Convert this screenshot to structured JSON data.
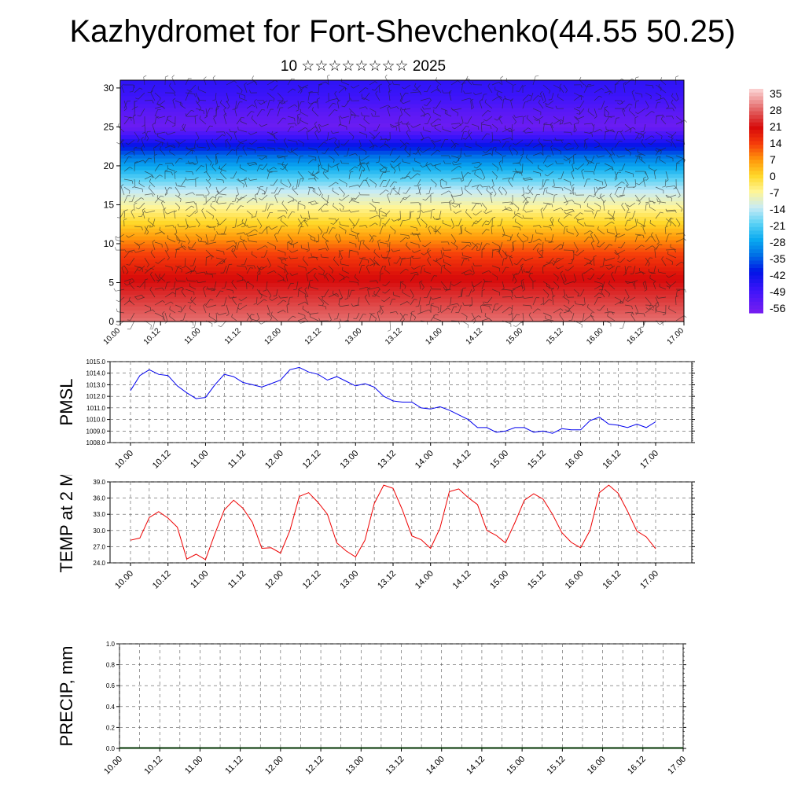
{
  "header": {
    "title": "Kazhydromet for Fort-Shevchenko(44.55 50.25)",
    "subtitle": "10 ☆☆☆☆☆☆☆☆ 2025"
  },
  "colors": {
    "pmsl_line": "#0000ee",
    "temp_line": "#ee0000",
    "precip_baseline": "#003300",
    "grid": "#555555"
  },
  "chart_data": [
    {
      "type": "heatmap",
      "title": "",
      "x_ticks": [
        "10.00",
        "10.12",
        "11.00",
        "11.12",
        "12.00",
        "12.12",
        "13.00",
        "13.12",
        "14.00",
        "14.12",
        "15.00",
        "15.12",
        "16.00",
        "16.12",
        "17.00"
      ],
      "y_ticks": [
        "0",
        "5",
        "10",
        "15",
        "20",
        "25",
        "30"
      ],
      "ylim": [
        0,
        31
      ],
      "colorbar": {
        "labels": [
          "35",
          "28",
          "21",
          "14",
          "7",
          "0",
          "-7",
          "-14",
          "-21",
          "-28",
          "-35",
          "-42",
          "-49",
          "-56"
        ],
        "range": [
          -60,
          38
        ]
      },
      "temperature_profile": [
        {
          "level": 0,
          "value": 30
        },
        {
          "level": 3,
          "value": 25
        },
        {
          "level": 6,
          "value": 20
        },
        {
          "level": 9,
          "value": 13
        },
        {
          "level": 11,
          "value": 6
        },
        {
          "level": 13,
          "value": -1
        },
        {
          "level": 15,
          "value": -8
        },
        {
          "level": 17,
          "value": -15
        },
        {
          "level": 19,
          "value": -24
        },
        {
          "level": 21,
          "value": -33
        },
        {
          "level": 23,
          "value": -45
        },
        {
          "level": 25,
          "value": -58
        },
        {
          "level": 27,
          "value": -55
        },
        {
          "level": 29,
          "value": -50
        },
        {
          "level": 31,
          "value": -48
        }
      ],
      "overlay": "wind barbs"
    },
    {
      "type": "line",
      "title": "",
      "ylabel": "PMSL",
      "ylim": [
        1008.0,
        1015.0
      ],
      "y_ticks": [
        "1008.0",
        "1009.0",
        "1010.0",
        "1011.0",
        "1012.0",
        "1013.0",
        "1014.0",
        "1015.0"
      ],
      "x_ticks": [
        "10.00",
        "10.12",
        "11.00",
        "11.12",
        "12.00",
        "12.12",
        "13.00",
        "13.12",
        "14.00",
        "14.12",
        "15.00",
        "15.12",
        "16.00",
        "16.12",
        "17.00"
      ],
      "x_hours_step": 3,
      "series": [
        {
          "values": [
            1012.5,
            1013.8,
            1014.3,
            1013.9,
            1013.8,
            1012.9,
            1012.3,
            1011.8,
            1011.9,
            1013.0,
            1013.9,
            1013.7,
            1013.2,
            1013.0,
            1012.8,
            1013.1,
            1013.4,
            1014.3,
            1014.5,
            1014.1,
            1013.9,
            1013.4,
            1013.7,
            1013.3,
            1012.9,
            1013.1,
            1012.8,
            1012.0,
            1011.6,
            1011.5,
            1011.5,
            1011.0,
            1010.9,
            1011.1,
            1010.8,
            1010.4,
            1010.0,
            1009.3,
            1009.3,
            1008.9,
            1009.0,
            1009.3,
            1009.3,
            1008.9,
            1009.0,
            1008.8,
            1009.2,
            1009.1,
            1009.1,
            1009.9,
            1010.2,
            1009.6,
            1009.5,
            1009.3,
            1009.6,
            1009.3,
            1009.8
          ]
        }
      ]
    },
    {
      "type": "line",
      "title": "",
      "ylabel": "TEMP at 2 M",
      "ylim": [
        24.0,
        39.0
      ],
      "y_ticks": [
        "24.0",
        "27.0",
        "30.0",
        "33.0",
        "36.0",
        "39.0"
      ],
      "x_ticks": [
        "10.00",
        "10.12",
        "11.00",
        "11.12",
        "12.00",
        "12.12",
        "13.00",
        "13.12",
        "14.00",
        "14.12",
        "15.00",
        "15.12",
        "16.00",
        "16.12",
        "17.00"
      ],
      "x_hours_step": 3,
      "series": [
        {
          "values": [
            28.2,
            28.6,
            32.4,
            33.5,
            32.3,
            30.6,
            24.7,
            25.6,
            24.6,
            29.4,
            33.8,
            35.6,
            34.1,
            31.5,
            26.7,
            26.8,
            25.8,
            30.0,
            36.3,
            37.0,
            35.2,
            33.0,
            27.7,
            26.2,
            25.1,
            28.2,
            35.0,
            38.4,
            37.8,
            33.8,
            29.0,
            28.3,
            26.7,
            30.4,
            37.2,
            37.7,
            36.1,
            34.8,
            30.0,
            29.1,
            27.7,
            31.5,
            35.6,
            36.8,
            35.8,
            33.0,
            29.6,
            27.8,
            26.8,
            30.0,
            37.0,
            38.4,
            36.9,
            33.6,
            29.9,
            28.8,
            26.6
          ]
        }
      ]
    },
    {
      "type": "bar",
      "title": "",
      "ylabel": "PRECIP, mm",
      "ylim": [
        0.0,
        1.0
      ],
      "y_ticks": [
        "0.0",
        "0.2",
        "0.4",
        "0.6",
        "0.8",
        "1.0"
      ],
      "x_ticks": [
        "10.00",
        "10.12",
        "11.00",
        "11.12",
        "12.00",
        "12.12",
        "13.00",
        "13.12",
        "14.00",
        "14.12",
        "15.00",
        "15.12",
        "16.00",
        "16.12",
        "17.00"
      ],
      "x_hours_step": 3,
      "series": [
        {
          "values": [
            0,
            0,
            0,
            0,
            0,
            0,
            0,
            0,
            0,
            0,
            0,
            0,
            0,
            0,
            0,
            0,
            0,
            0,
            0,
            0,
            0,
            0,
            0,
            0,
            0,
            0,
            0,
            0,
            0,
            0,
            0,
            0,
            0,
            0,
            0,
            0,
            0,
            0,
            0,
            0,
            0,
            0,
            0,
            0,
            0,
            0,
            0,
            0,
            0,
            0,
            0,
            0,
            0,
            0,
            0,
            0,
            0
          ]
        }
      ]
    }
  ]
}
